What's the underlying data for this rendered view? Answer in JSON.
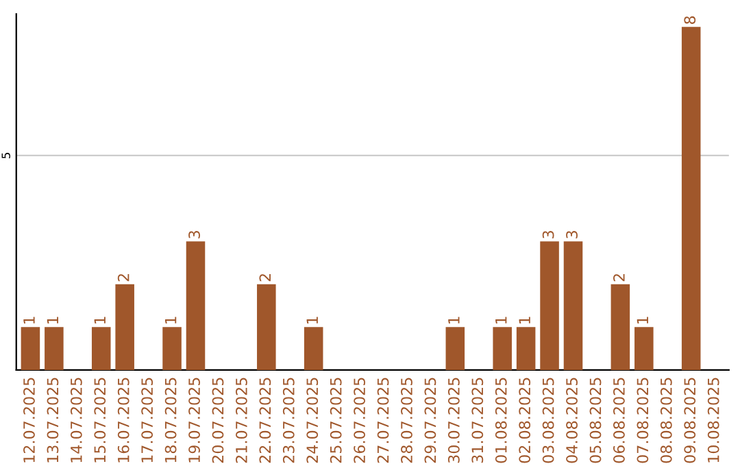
{
  "chart_data": {
    "type": "bar",
    "categories": [
      "12.07.2025",
      "13.07.2025",
      "14.07.2025",
      "15.07.2025",
      "16.07.2025",
      "17.07.2025",
      "18.07.2025",
      "19.07.2025",
      "20.07.2025",
      "21.07.2025",
      "22.07.2025",
      "23.07.2025",
      "24.07.2025",
      "25.07.2025",
      "26.07.2025",
      "27.07.2025",
      "28.07.2025",
      "29.07.2025",
      "30.07.2025",
      "31.07.2025",
      "01.08.2025",
      "02.08.2025",
      "03.08.2025",
      "04.08.2025",
      "05.08.2025",
      "06.08.2025",
      "07.08.2025",
      "08.08.2025",
      "09.08.2025",
      "10.08.2025"
    ],
    "values": [
      1,
      1,
      0,
      1,
      2,
      0,
      1,
      3,
      0,
      0,
      2,
      0,
      1,
      0,
      0,
      0,
      0,
      0,
      1,
      0,
      1,
      1,
      3,
      3,
      0,
      2,
      1,
      0,
      8,
      0
    ],
    "value_labels": [
      "1",
      "1",
      null,
      "1",
      "2",
      null,
      "1",
      "3",
      null,
      null,
      "2",
      null,
      "1",
      null,
      null,
      null,
      null,
      null,
      "1",
      null,
      "1",
      "1",
      "3",
      "3",
      null,
      "2",
      "1",
      null,
      "8",
      null
    ],
    "color": "#a0572b",
    "ylim": [
      0,
      8.3
    ],
    "yticks": [
      5
    ],
    "grid": "y"
  }
}
